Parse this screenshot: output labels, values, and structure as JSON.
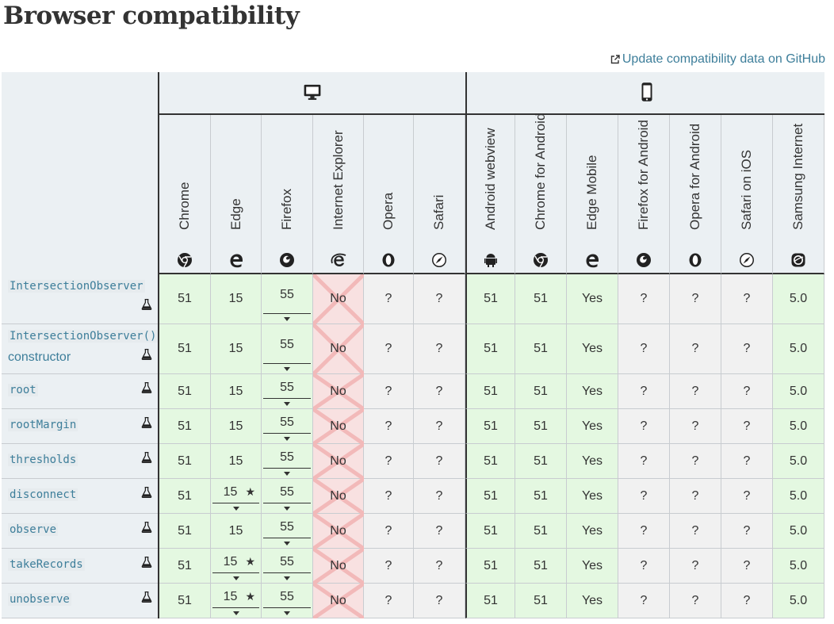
{
  "title": "Browser compatibility",
  "github_link": "Update compatibility data on GitHub",
  "platform_icons": [
    "desktop-icon",
    "mobile-icon"
  ],
  "browsers": [
    {
      "name": "Chrome",
      "icon": "chrome-icon"
    },
    {
      "name": "Edge",
      "icon": "edge-icon"
    },
    {
      "name": "Firefox",
      "icon": "firefox-icon"
    },
    {
      "name": "Internet Explorer",
      "icon": "ie-icon"
    },
    {
      "name": "Opera",
      "icon": "opera-icon"
    },
    {
      "name": "Safari",
      "icon": "safari-icon"
    },
    {
      "name": "Android webview",
      "icon": "android-icon"
    },
    {
      "name": "Chrome for Android",
      "icon": "chrome-icon"
    },
    {
      "name": "Edge Mobile",
      "icon": "edge-icon"
    },
    {
      "name": "Firefox for Android",
      "icon": "firefox-icon"
    },
    {
      "name": "Opera for Android",
      "icon": "opera-icon"
    },
    {
      "name": "Safari on iOS",
      "icon": "safari-icon"
    },
    {
      "name": "Samsung Internet",
      "icon": "samsung-icon"
    }
  ],
  "features": [
    {
      "name": "IntersectionObserver",
      "extra": "",
      "values": [
        "51",
        "15",
        "55",
        "No",
        "?",
        "?",
        "51",
        "51",
        "Yes",
        "?",
        "?",
        "?",
        "5.0"
      ],
      "notes": [
        false,
        false,
        true,
        false,
        false,
        false,
        false,
        false,
        false,
        false,
        false,
        false,
        false
      ],
      "stars": [
        false,
        false,
        false,
        false,
        false,
        false,
        false,
        false,
        false,
        false,
        false,
        false,
        false
      ]
    },
    {
      "name": "IntersectionObserver()",
      "extra": "constructor",
      "values": [
        "51",
        "15",
        "55",
        "No",
        "?",
        "?",
        "51",
        "51",
        "Yes",
        "?",
        "?",
        "?",
        "5.0"
      ],
      "notes": [
        false,
        false,
        true,
        false,
        false,
        false,
        false,
        false,
        false,
        false,
        false,
        false,
        false
      ],
      "stars": [
        false,
        false,
        false,
        false,
        false,
        false,
        false,
        false,
        false,
        false,
        false,
        false,
        false
      ]
    },
    {
      "name": "root",
      "extra": "",
      "values": [
        "51",
        "15",
        "55",
        "No",
        "?",
        "?",
        "51",
        "51",
        "Yes",
        "?",
        "?",
        "?",
        "5.0"
      ],
      "notes": [
        false,
        false,
        true,
        false,
        false,
        false,
        false,
        false,
        false,
        false,
        false,
        false,
        false
      ],
      "stars": [
        false,
        false,
        false,
        false,
        false,
        false,
        false,
        false,
        false,
        false,
        false,
        false,
        false
      ]
    },
    {
      "name": "rootMargin",
      "extra": "",
      "values": [
        "51",
        "15",
        "55",
        "No",
        "?",
        "?",
        "51",
        "51",
        "Yes",
        "?",
        "?",
        "?",
        "5.0"
      ],
      "notes": [
        false,
        false,
        true,
        false,
        false,
        false,
        false,
        false,
        false,
        false,
        false,
        false,
        false
      ],
      "stars": [
        false,
        false,
        false,
        false,
        false,
        false,
        false,
        false,
        false,
        false,
        false,
        false,
        false
      ]
    },
    {
      "name": "thresholds",
      "extra": "",
      "values": [
        "51",
        "15",
        "55",
        "No",
        "?",
        "?",
        "51",
        "51",
        "Yes",
        "?",
        "?",
        "?",
        "5.0"
      ],
      "notes": [
        false,
        false,
        true,
        false,
        false,
        false,
        false,
        false,
        false,
        false,
        false,
        false,
        false
      ],
      "stars": [
        false,
        false,
        false,
        false,
        false,
        false,
        false,
        false,
        false,
        false,
        false,
        false,
        false
      ]
    },
    {
      "name": "disconnect",
      "extra": "",
      "values": [
        "51",
        "15",
        "55",
        "No",
        "?",
        "?",
        "51",
        "51",
        "Yes",
        "?",
        "?",
        "?",
        "5.0"
      ],
      "notes": [
        false,
        true,
        true,
        false,
        false,
        false,
        false,
        false,
        false,
        false,
        false,
        false,
        false
      ],
      "stars": [
        false,
        true,
        false,
        false,
        false,
        false,
        false,
        false,
        false,
        false,
        false,
        false,
        false
      ]
    },
    {
      "name": "observe",
      "extra": "",
      "values": [
        "51",
        "15",
        "55",
        "No",
        "?",
        "?",
        "51",
        "51",
        "Yes",
        "?",
        "?",
        "?",
        "5.0"
      ],
      "notes": [
        false,
        false,
        true,
        false,
        false,
        false,
        false,
        false,
        false,
        false,
        false,
        false,
        false
      ],
      "stars": [
        false,
        false,
        false,
        false,
        false,
        false,
        false,
        false,
        false,
        false,
        false,
        false,
        false
      ]
    },
    {
      "name": "takeRecords",
      "extra": "",
      "values": [
        "51",
        "15",
        "55",
        "No",
        "?",
        "?",
        "51",
        "51",
        "Yes",
        "?",
        "?",
        "?",
        "5.0"
      ],
      "notes": [
        false,
        true,
        true,
        false,
        false,
        false,
        false,
        false,
        false,
        false,
        false,
        false,
        false
      ],
      "stars": [
        false,
        true,
        false,
        false,
        false,
        false,
        false,
        false,
        false,
        false,
        false,
        false,
        false
      ]
    },
    {
      "name": "unobserve",
      "extra": "",
      "values": [
        "51",
        "15",
        "55",
        "No",
        "?",
        "?",
        "51",
        "51",
        "Yes",
        "?",
        "?",
        "?",
        "5.0"
      ],
      "notes": [
        false,
        true,
        true,
        false,
        false,
        false,
        false,
        false,
        false,
        false,
        false,
        false,
        false
      ],
      "stars": [
        false,
        true,
        false,
        false,
        false,
        false,
        false,
        false,
        false,
        false,
        false,
        false,
        false
      ]
    }
  ],
  "colors": {
    "yes": "#e4f8e1",
    "no": "#f8e1e1",
    "unknown": "#f1f1f1",
    "link": "#3d7e9a",
    "header": "#ebf0f3"
  }
}
